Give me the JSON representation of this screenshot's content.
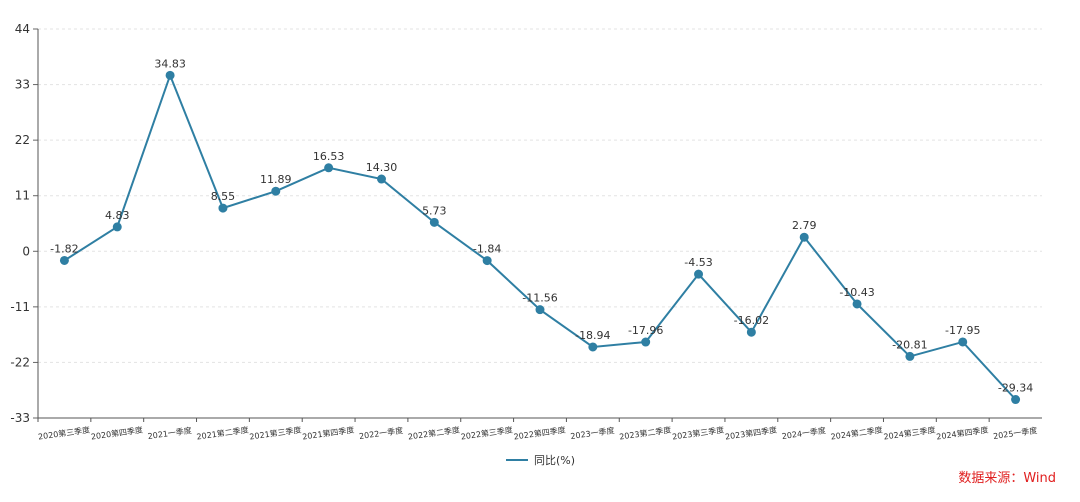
{
  "chart_data": {
    "type": "line",
    "categories": [
      "2020第三季度",
      "2020第四季度",
      "2021一季度",
      "2021第二季度",
      "2021第三季度",
      "2021第四季度",
      "2022一季度",
      "2022第二季度",
      "2022第三季度",
      "2022第四季度",
      "2023一季度",
      "2023第二季度",
      "2023第三季度",
      "2023第四季度",
      "2024一季度",
      "2024第二季度",
      "2024第三季度",
      "2024第四季度",
      "2025一季度"
    ],
    "series": [
      {
        "name": "同比(%)",
        "values": [
          -1.82,
          4.83,
          34.83,
          8.55,
          11.89,
          16.53,
          14.3,
          5.73,
          -1.84,
          -11.56,
          -18.94,
          -17.96,
          -4.53,
          -16.02,
          2.79,
          -10.43,
          -20.81,
          -17.95,
          -29.34
        ],
        "labels": [
          "-1.82",
          "4.83",
          "34.83",
          "8.55",
          "11.89",
          "16.53",
          "14.30",
          "5.73",
          "-1.84",
          "-11.56",
          "-18.94",
          "-17.96",
          "-4.53",
          "-16.02",
          "2.79",
          "-10.43",
          "-20.81",
          "-17.95",
          "-29.34"
        ]
      }
    ],
    "yticks": [
      "44",
      "33",
      "22",
      "11",
      "0",
      "-11",
      "-22",
      "-33"
    ],
    "ylim": [
      -33,
      44
    ],
    "grid": true,
    "legend_position": "bottom-center",
    "color": "#2f7fa3"
  },
  "source": "数据来源：Wind"
}
